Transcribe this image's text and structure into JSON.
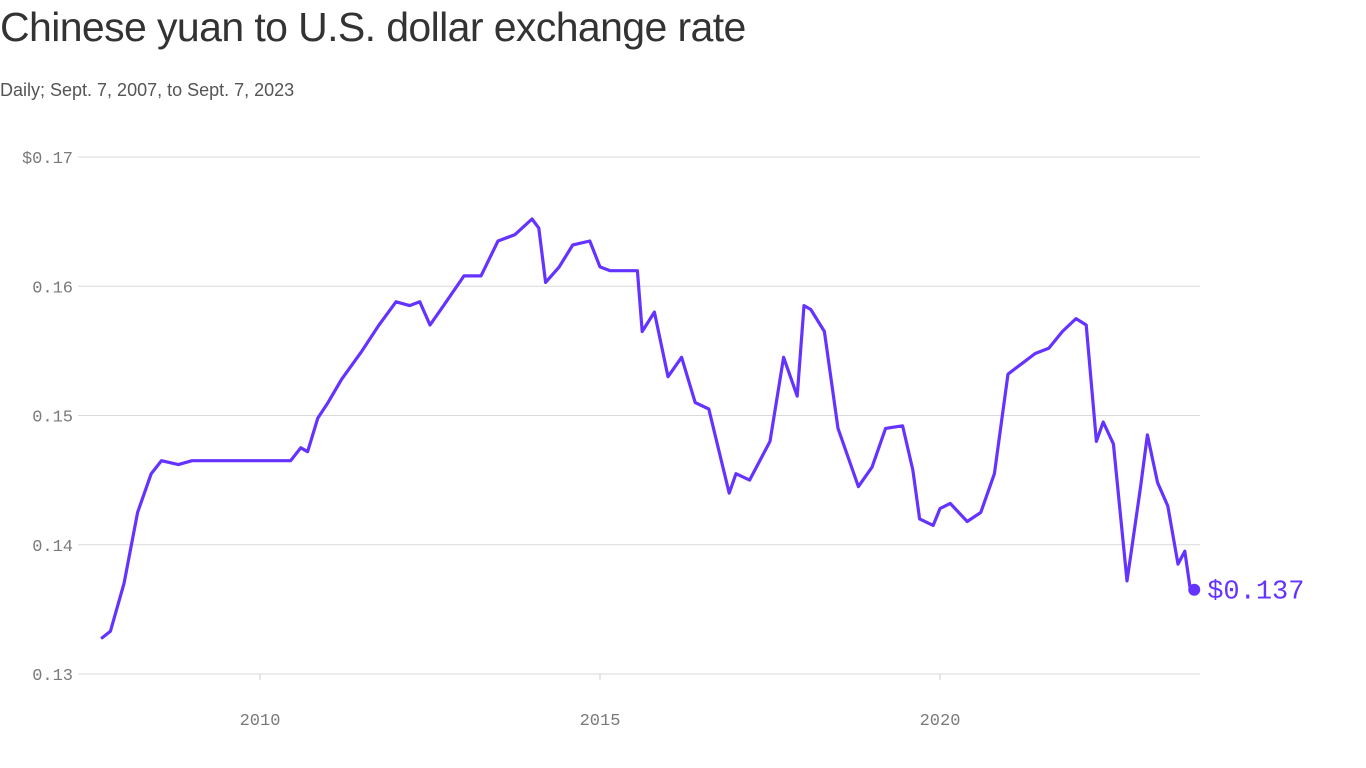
{
  "chart_data": {
    "type": "line",
    "title": "Chinese yuan to U.S. dollar exchange rate",
    "subtitle": "Daily; Sept. 7, 2007, to Sept. 7, 2023",
    "xlabel": "",
    "ylabel": "",
    "xlim": [
      2007.68,
      2023.68
    ],
    "ylim": [
      0.13,
      0.17
    ],
    "y_ticks": [
      {
        "value": 0.17,
        "label": "$0.17"
      },
      {
        "value": 0.16,
        "label": "0.16"
      },
      {
        "value": 0.15,
        "label": "0.15"
      },
      {
        "value": 0.14,
        "label": "0.14"
      },
      {
        "value": 0.13,
        "label": "0.13"
      }
    ],
    "x_ticks": [
      {
        "value": 2010,
        "label": "2010"
      },
      {
        "value": 2015,
        "label": "2015"
      },
      {
        "value": 2020,
        "label": "2020"
      }
    ],
    "grid": "horizontal",
    "line_color": "#6533ff",
    "end_label": "$0.137",
    "series": [
      {
        "x": [
          2007.68,
          2007.8,
          2008.0,
          2008.2,
          2008.4,
          2008.55,
          2008.8,
          2009.0,
          2009.5,
          2010.0,
          2010.45,
          2010.6,
          2010.7,
          2010.85,
          2011.0,
          2011.2,
          2011.5,
          2011.75,
          2012.0,
          2012.2,
          2012.35,
          2012.5,
          2012.7,
          2013.0,
          2013.25,
          2013.5,
          2013.75,
          2014.0,
          2014.1,
          2014.2,
          2014.4,
          2014.6,
          2014.85,
          2015.0,
          2015.15,
          2015.55,
          2015.62,
          2015.8,
          2016.0,
          2016.2,
          2016.4,
          2016.6,
          2016.9,
          2017.0,
          2017.2,
          2017.5,
          2017.7,
          2017.9,
          2018.0,
          2018.1,
          2018.3,
          2018.5,
          2018.8,
          2019.0,
          2019.2,
          2019.45,
          2019.6,
          2019.7,
          2019.9,
          2020.0,
          2020.15,
          2020.4,
          2020.6,
          2020.8,
          2021.0,
          2021.2,
          2021.4,
          2021.6,
          2021.8,
          2022.0,
          2022.15,
          2022.3,
          2022.4,
          2022.55,
          2022.75,
          2022.8,
          2022.95,
          2023.05,
          2023.2,
          2023.35,
          2023.5,
          2023.6,
          2023.68
        ],
        "y": [
          0.1328,
          0.1333,
          0.137,
          0.1425,
          0.1455,
          0.1465,
          0.1462,
          0.1465,
          0.1465,
          0.1465,
          0.1465,
          0.1475,
          0.1472,
          0.1498,
          0.151,
          0.1528,
          0.155,
          0.157,
          0.1588,
          0.1585,
          0.1588,
          0.157,
          0.1585,
          0.1608,
          0.1608,
          0.1635,
          0.164,
          0.1652,
          0.1645,
          0.1603,
          0.1615,
          0.1632,
          0.1635,
          0.1615,
          0.1612,
          0.1612,
          0.1565,
          0.158,
          0.153,
          0.1545,
          0.151,
          0.1505,
          0.144,
          0.1455,
          0.145,
          0.148,
          0.1545,
          0.1515,
          0.1585,
          0.1582,
          0.1565,
          0.149,
          0.1445,
          0.146,
          0.149,
          0.1492,
          0.1458,
          0.142,
          0.1415,
          0.1428,
          0.1432,
          0.1418,
          0.1425,
          0.1455,
          0.1532,
          0.154,
          0.1548,
          0.1552,
          0.1565,
          0.1575,
          0.157,
          0.148,
          0.1495,
          0.1478,
          0.1372,
          0.139,
          0.1445,
          0.1485,
          0.1448,
          0.143,
          0.1385,
          0.1395,
          0.1366
        ]
      }
    ]
  }
}
